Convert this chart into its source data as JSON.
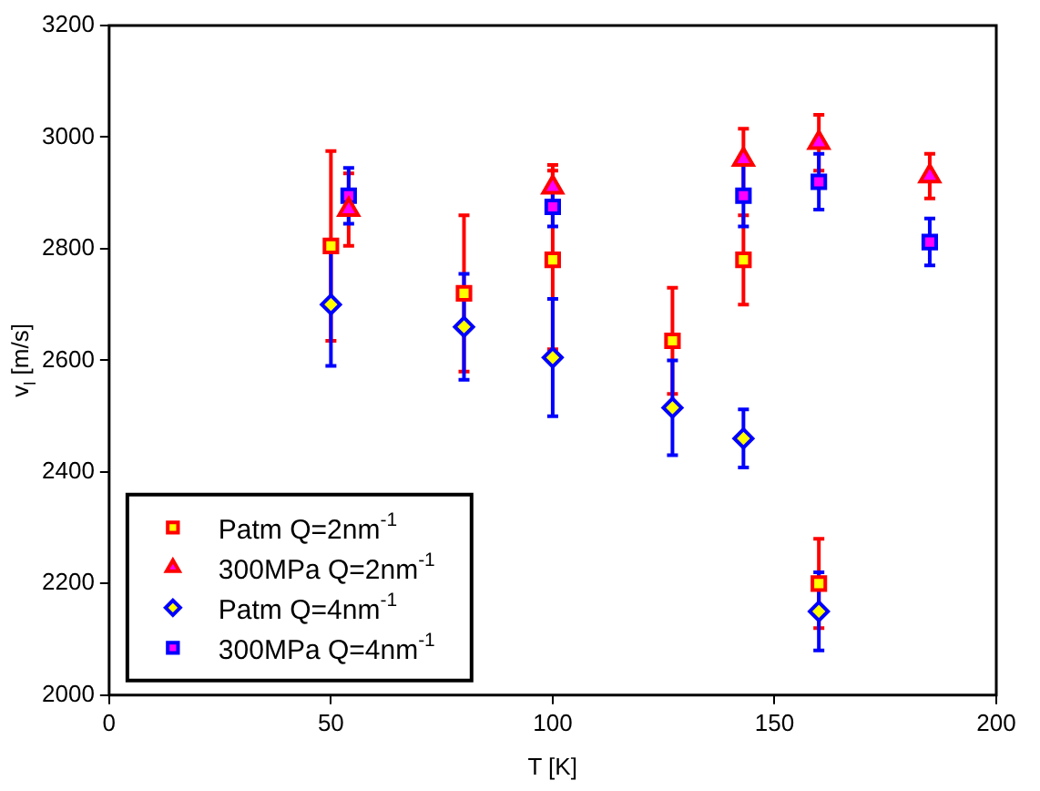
{
  "chart_data": {
    "type": "scatter",
    "xlabel": "T [K]",
    "ylabel": "v$_{l}$ [m/s]",
    "xlim": [
      0,
      200
    ],
    "xticks": [
      0,
      50,
      100,
      150,
      200
    ],
    "ylim": [
      2000,
      3200
    ],
    "yticks": [
      2000,
      2200,
      2400,
      2600,
      2800,
      3000,
      3200
    ],
    "grid": false,
    "legend": "bottom left",
    "series": [
      {
        "name": "Patm Q=2nm$^{-1}$",
        "color": "#ff0000",
        "marker": "square",
        "x": [
          50,
          80,
          100,
          127,
          143,
          160
        ],
        "values": [
          2805,
          2720,
          2780,
          2635,
          2780,
          2200
        ],
        "errors": [
          170,
          140,
          160,
          95,
          80,
          80
        ]
      },
      {
        "name": "300MPa Q=2nm$^{-1}$",
        "color": "#ff0000",
        "marker": "triangle",
        "x": [
          54,
          100,
          143,
          160,
          185
        ],
        "values": [
          2870,
          2910,
          2960,
          2990,
          2930
        ],
        "errors": [
          65,
          40,
          55,
          50,
          40
        ]
      },
      {
        "name": "Patm Q=4nm$^{-1}$",
        "color": "#0000ff",
        "marker": "diamond",
        "x": [
          50,
          80,
          100,
          127,
          143,
          160
        ],
        "values": [
          2700,
          2660,
          2605,
          2515,
          2460,
          2150
        ],
        "errors": [
          110,
          95,
          105,
          85,
          52,
          70
        ]
      },
      {
        "name": "300MPa Q=4nm$^{-1}$",
        "color": "#0000ff",
        "marker": "square",
        "x": [
          54,
          100,
          143,
          160,
          185
        ],
        "values": [
          2895,
          2875,
          2895,
          2920,
          2812
        ],
        "errors": [
          50,
          35,
          55,
          50,
          42
        ]
      }
    ]
  }
}
